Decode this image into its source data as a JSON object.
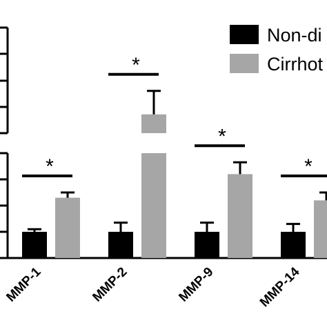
{
  "chart_data": {
    "type": "bar",
    "categories": [
      "MMP-1",
      "MMP-2",
      "MMP-9",
      "MMP-14"
    ],
    "series": [
      {
        "name": "Non-di",
        "color": "#000000",
        "values": [
          1.0,
          1.0,
          1.0,
          1.0
        ],
        "errors": [
          0.1,
          0.35,
          0.35,
          0.3
        ]
      },
      {
        "name": "Cirrhot",
        "color": "#a6a6a6",
        "values": [
          2.3,
          8.3,
          3.2,
          2.2
        ],
        "errors": [
          0.2,
          1.0,
          0.45,
          0.3
        ]
      }
    ],
    "significance": [
      "*",
      "*",
      "*",
      "*"
    ],
    "axis_break": {
      "lower_range": [
        0,
        4
      ],
      "upper_range": [
        7.5,
        12
      ]
    },
    "grid": false,
    "legend": "top-right"
  }
}
